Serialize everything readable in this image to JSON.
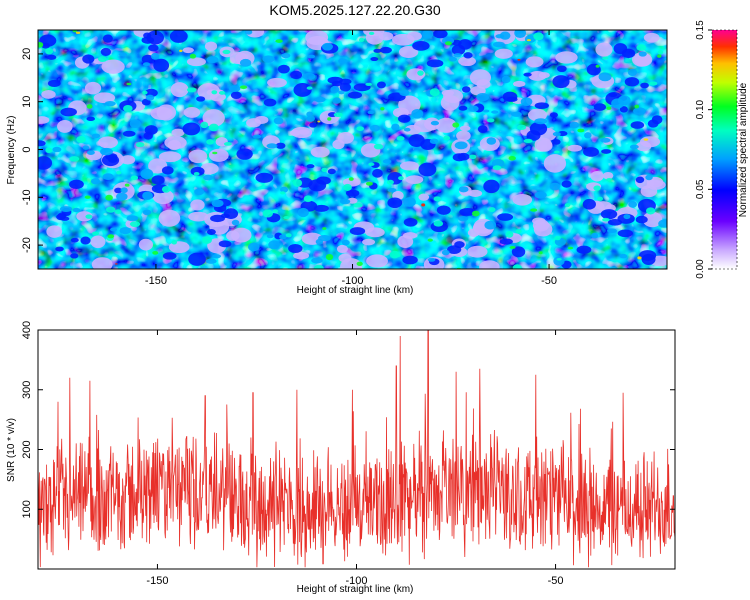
{
  "title": "KOM5.2025.127.22.20.G30",
  "chart_data": [
    {
      "type": "heatmap",
      "xlabel": "Height of straight line (km)",
      "ylabel": "Frequency (Hz)",
      "xlim": [
        -180,
        -20
      ],
      "ylim": [
        -25,
        25
      ],
      "x_ticks": [
        -150,
        -100,
        -50
      ],
      "x_tick_labels": [
        "-150",
        "-100",
        "-50"
      ],
      "y_ticks": [
        -20,
        -10,
        0,
        10,
        20
      ],
      "y_tick_labels": [
        "-20",
        "-10",
        "0",
        "10",
        "20"
      ],
      "colorbar": {
        "label": "Normalized spectral amplitude",
        "range": [
          0,
          0.15
        ],
        "ticks": [
          0,
          0.05,
          0.1,
          0.15
        ],
        "tick_labels": [
          "0.00",
          "0.05",
          "0.10",
          "0.15"
        ]
      },
      "grid": false
    },
    {
      "type": "line",
      "xlabel": "Height of straight line (km)",
      "ylabel": "SNR (10 * v/v)",
      "xlim": [
        -180,
        -20
      ],
      "ylim": [
        0,
        400
      ],
      "x_ticks": [
        -150,
        -100,
        -50
      ],
      "x_tick_labels": [
        "-150",
        "-100",
        "-50"
      ],
      "y_ticks": [
        100,
        200,
        300,
        400
      ],
      "y_tick_labels": [
        "100",
        "200",
        "300",
        "400"
      ],
      "color": "#e8302a",
      "grid": false,
      "mean_level": 115,
      "peaks": [
        {
          "x": -175,
          "y": 280
        },
        {
          "x": -172,
          "y": 320
        },
        {
          "x": -167,
          "y": 315
        },
        {
          "x": -138,
          "y": 290
        },
        {
          "x": -126,
          "y": 295
        },
        {
          "x": -115,
          "y": 300
        },
        {
          "x": -101,
          "y": 300
        },
        {
          "x": -90,
          "y": 340
        },
        {
          "x": -89,
          "y": 390
        },
        {
          "x": -82,
          "y": 400
        },
        {
          "x": -75,
          "y": 330
        },
        {
          "x": -69,
          "y": 335
        },
        {
          "x": -55,
          "y": 325
        },
        {
          "x": -33,
          "y": 295
        }
      ]
    }
  ]
}
